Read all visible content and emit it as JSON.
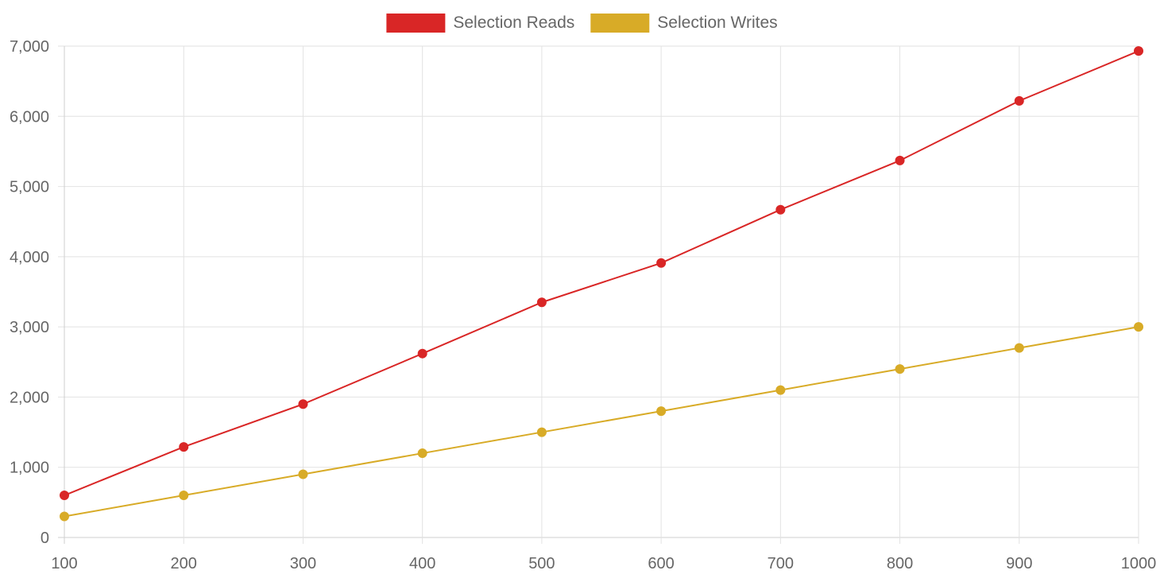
{
  "chart_data": {
    "type": "line",
    "x": [
      100,
      200,
      300,
      400,
      500,
      600,
      700,
      800,
      900,
      1000
    ],
    "xticks": [
      "100",
      "200",
      "300",
      "400",
      "500",
      "600",
      "700",
      "800",
      "900",
      "1000"
    ],
    "yticks": [
      {
        "value": 0,
        "label": "0"
      },
      {
        "value": 1000,
        "label": "1,000"
      },
      {
        "value": 2000,
        "label": "2,000"
      },
      {
        "value": 3000,
        "label": "3,000"
      },
      {
        "value": 4000,
        "label": "4,000"
      },
      {
        "value": 5000,
        "label": "5,000"
      },
      {
        "value": 6000,
        "label": "6,000"
      },
      {
        "value": 7000,
        "label": "7,000"
      }
    ],
    "xlim": [
      100,
      1000
    ],
    "ylim": [
      0,
      7000
    ],
    "grid": true,
    "legend_position": "top-center",
    "series": [
      {
        "name": "Selection Reads",
        "color": "#d92626",
        "values": [
          600,
          1290,
          1900,
          2620,
          3350,
          3910,
          4670,
          5370,
          6220,
          6930
        ]
      },
      {
        "name": "Selection Writes",
        "color": "#d8ab27",
        "values": [
          300,
          600,
          900,
          1200,
          1500,
          1800,
          2100,
          2400,
          2700,
          3000
        ]
      }
    ]
  }
}
